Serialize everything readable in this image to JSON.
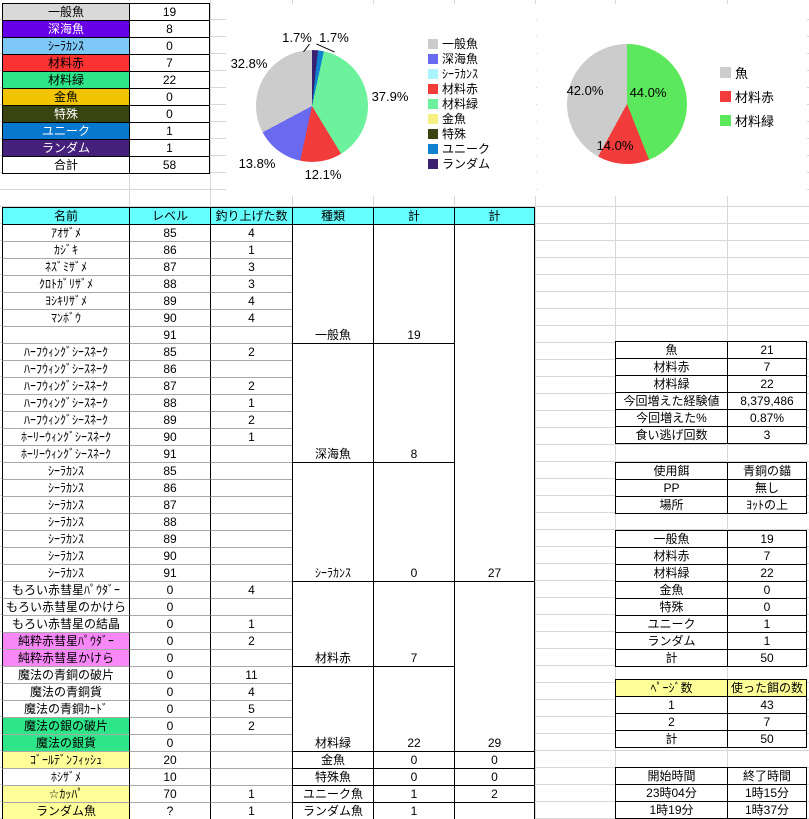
{
  "summary_table": {
    "rows": [
      {
        "a": "一般魚",
        "b": "19",
        "abg": "#d9d9d9",
        "afg": "#000000"
      },
      {
        "a": "深海魚",
        "b": "8",
        "abg": "#6600e6",
        "afg": "#ffffff"
      },
      {
        "a": "ｼｰﾗｶﾝｽ",
        "b": "0",
        "abg": "#7ec8f8",
        "afg": "#000000"
      },
      {
        "a": "材料赤",
        "b": "7",
        "abg": "#fa3232",
        "afg": "#000000"
      },
      {
        "a": "材料緑",
        "b": "22",
        "abg": "#2ee589",
        "afg": "#000000"
      },
      {
        "a": "金魚",
        "b": "0",
        "abg": "#f0c400",
        "afg": "#000000"
      },
      {
        "a": "特殊",
        "b": "0",
        "abg": "#3a4410",
        "afg": "#ffffff"
      },
      {
        "a": "ユニーク",
        "b": "1",
        "abg": "#0877ce",
        "afg": "#ffffff"
      },
      {
        "a": "ランダム",
        "b": "1",
        "abg": "#45217c",
        "afg": "#ffffff"
      },
      {
        "a": "合計",
        "b": "58"
      }
    ]
  },
  "chart_data": [
    {
      "type": "pie",
      "direction": "clockwise_from_top",
      "legend_position": "right",
      "slices": [
        {
          "label": "ランダム",
          "value": 1,
          "pct": 1.7,
          "pct_label": "1.7%",
          "color": "#3a2070"
        },
        {
          "label": "ユニーク",
          "value": 1,
          "pct": 1.7,
          "pct_label": "1.7%",
          "color": "#1080d0"
        },
        {
          "label": "材料緑",
          "value": 22,
          "pct": 37.9,
          "pct_label": "37.9%",
          "color": "#6cf29c"
        },
        {
          "label": "材料赤",
          "value": 7,
          "pct": 12.1,
          "pct_label": "12.1%",
          "color": "#f23b3b"
        },
        {
          "label": "深海魚",
          "value": 8,
          "pct": 13.8,
          "pct_label": "13.8%",
          "color": "#6a6af0"
        },
        {
          "label": "一般魚",
          "value": 19,
          "pct": 32.8,
          "pct_label": "32.8%",
          "color": "#cccccc"
        }
      ],
      "legend": [
        {
          "t": "一般魚",
          "c": "#cccccc"
        },
        {
          "t": "深海魚",
          "c": "#6a6af0"
        },
        {
          "t": "ｼｰﾗｶﾝｽ",
          "c": "#aaf5ff"
        },
        {
          "t": "材料赤",
          "c": "#f23b3b"
        },
        {
          "t": "材料緑",
          "c": "#6cf29c"
        },
        {
          "t": "金魚",
          "c": "#f5f080"
        },
        {
          "t": "特殊",
          "c": "#3a4410"
        },
        {
          "t": "ユニーク",
          "c": "#1080d0"
        },
        {
          "t": "ランダム",
          "c": "#3a2070"
        }
      ]
    },
    {
      "type": "pie",
      "direction": "clockwise_from_top",
      "legend_position": "right",
      "slices": [
        {
          "label": "材料緑",
          "value": 22,
          "pct": 44.0,
          "pct_label": "44.0%",
          "color": "#5ce85c"
        },
        {
          "label": "材料赤",
          "value": 7,
          "pct": 14.0,
          "pct_label": "14.0%",
          "color": "#f23b3b"
        },
        {
          "label": "魚",
          "value": 21,
          "pct": 42.0,
          "pct_label": "42.0%",
          "color": "#cccccc"
        }
      ],
      "legend": [
        {
          "t": "魚",
          "c": "#cccccc"
        },
        {
          "t": "材料赤",
          "c": "#f23b3b"
        },
        {
          "t": "材料緑",
          "c": "#5ce85c"
        }
      ]
    }
  ],
  "main_table": {
    "headers": [
      "名前",
      "レベル",
      "釣り上げた数",
      "種類",
      "計",
      "計"
    ],
    "rows": [
      {
        "n": "ｱｵｻﾞﾒ",
        "l": "85",
        "c": "4"
      },
      {
        "n": "ｶｼﾞｷ",
        "l": "86",
        "c": "1"
      },
      {
        "n": "ﾈｽﾞﾐｻﾞﾒ",
        "l": "87",
        "c": "3"
      },
      {
        "n": "ｸﾛﾄｶﾞﾘｻﾞﾒ",
        "l": "88",
        "c": "3"
      },
      {
        "n": "ﾖｼｷﾘｻﾞﾒ",
        "l": "89",
        "c": "4"
      },
      {
        "n": "ﾏﾝﾎﾞｳ",
        "l": "90",
        "c": "4"
      },
      {
        "n": "",
        "l": "91",
        "c": "",
        "k": "一般魚",
        "t": "19",
        "de": true
      },
      {
        "n": "ﾊｰﾌｳｨﾝｸﾞｼｰｽﾈｰｸ",
        "l": "85",
        "c": "2"
      },
      {
        "n": "ﾊｰﾌｳｨﾝｸﾞｼｰｽﾈｰｸ",
        "l": "86",
        "c": ""
      },
      {
        "n": "ﾊｰﾌｳｨﾝｸﾞｼｰｽﾈｰｸ",
        "l": "87",
        "c": "2"
      },
      {
        "n": "ﾊｰﾌｳｨﾝｸﾞｼｰｽﾈｰｸ",
        "l": "88",
        "c": "1"
      },
      {
        "n": "ﾊｰﾌｳｨﾝｸﾞｼｰｽﾈｰｸ",
        "l": "89",
        "c": "2"
      },
      {
        "n": "ﾎｰﾘｰｳｨﾝｸﾞｼｰｽﾈｰｸ",
        "l": "90",
        "c": "1"
      },
      {
        "n": "ﾎｰﾘｰｳｨﾝｸﾞｼｰｽﾈｰｸ",
        "l": "91",
        "c": "",
        "k": "深海魚",
        "t": "8",
        "de": true
      },
      {
        "n": "ｼｰﾗｶﾝｽ",
        "l": "85"
      },
      {
        "n": "ｼｰﾗｶﾝｽ",
        "l": "86"
      },
      {
        "n": "ｼｰﾗｶﾝｽ",
        "l": "87"
      },
      {
        "n": "ｼｰﾗｶﾝｽ",
        "l": "88"
      },
      {
        "n": "ｼｰﾗｶﾝｽ",
        "l": "89"
      },
      {
        "n": "ｼｰﾗｶﾝｽ",
        "l": "90"
      },
      {
        "n": "ｼｰﾗｶﾝｽ",
        "l": "91",
        "k": "ｼｰﾗｶﾝｽ",
        "t": "0",
        "t2": "27",
        "de": true,
        "fe": true
      },
      {
        "n": "もろい赤彗星ﾊﾟｳﾀﾞｰ",
        "l": "0",
        "c": "4"
      },
      {
        "n": "もろい赤彗星のかけら",
        "l": "0"
      },
      {
        "n": "もろい赤彗星の結晶",
        "l": "0",
        "c": "1"
      },
      {
        "n": "純粋赤彗星ﾊﾟｳﾀﾞｰ",
        "l": "0",
        "c": "2",
        "nbg": "#f887f8"
      },
      {
        "n": "純粋赤彗星かけら",
        "l": "0",
        "k": "材料赤",
        "t": "7",
        "nbg": "#f887f8",
        "de": true
      },
      {
        "n": "魔法の青銅の破片",
        "l": "0",
        "c": "11"
      },
      {
        "n": "魔法の青銅貨",
        "l": "0",
        "c": "4"
      },
      {
        "n": "魔法の青銅ｶｰﾄﾞ",
        "l": "0",
        "c": "5"
      },
      {
        "n": "魔法の銀の破片",
        "l": "0",
        "c": "2",
        "nbg": "#2ee589"
      },
      {
        "n": "魔法の銀貨",
        "l": "0",
        "k": "材料緑",
        "t": "22",
        "t2": "29",
        "nbg": "#2ee589",
        "de": true,
        "fe": true
      },
      {
        "n": "ｺﾞｰﾙﾃﾞﾝﾌｨｯｼｭ",
        "l": "20",
        "k": "金魚",
        "t": "0",
        "t2": "0",
        "nbg": "#ffff99",
        "de": true,
        "fe": true
      },
      {
        "n": "ﾎｼｻﾞﾒ",
        "l": "10",
        "k": "特殊魚",
        "t": "0",
        "t2": "0",
        "de": true,
        "fe": true
      },
      {
        "n": "☆ｶｯﾊﾟ",
        "l": "70",
        "c": "1",
        "k": "ユニーク魚",
        "t": "1",
        "t2": "2",
        "nbg": "#ffff99",
        "de": true,
        "fe": true
      },
      {
        "n": "ランダム魚",
        "l": "?",
        "c": "1",
        "k": "ランダム魚",
        "t": "1",
        "nbg": "#ffff99",
        "de": true,
        "fe": true
      }
    ]
  },
  "right_tables": {
    "stats1": {
      "rows": [
        {
          "a": "魚",
          "b": "21"
        },
        {
          "a": "材料赤",
          "b": "7"
        },
        {
          "a": "材料緑",
          "b": "22"
        },
        {
          "a": "今回増えた経験値",
          "b": "8,379,486"
        },
        {
          "a": "今回増えた%",
          "b": "0.87%"
        },
        {
          "a": "食い逃げ回数",
          "b": "3"
        }
      ]
    },
    "info": {
      "rows": [
        {
          "a": "使用餌",
          "b": "青銅の錨"
        },
        {
          "a": "PP",
          "b": "無し"
        },
        {
          "a": "場所",
          "b": "ﾖｯﾄの上"
        }
      ]
    },
    "stats2": {
      "rows": [
        {
          "a": "一般魚",
          "b": "19"
        },
        {
          "a": "材料赤",
          "b": "7"
        },
        {
          "a": "材料緑",
          "b": "22"
        },
        {
          "a": "金魚",
          "b": "0"
        },
        {
          "a": "特殊",
          "b": "0"
        },
        {
          "a": "ユニーク",
          "b": "1"
        },
        {
          "a": "ランダム",
          "b": "1"
        },
        {
          "a": "計",
          "b": "50"
        }
      ]
    },
    "pages": {
      "rows": [
        {
          "a": "ﾍﾟｰｼﾞ数",
          "b": "使った餌の数",
          "bg": "#ffff99"
        },
        {
          "a": "1",
          "b": "43"
        },
        {
          "a": "2",
          "b": "7"
        },
        {
          "a": "計",
          "b": "50"
        }
      ]
    },
    "times": {
      "rows": [
        {
          "a": "開始時間",
          "b": "終了時間"
        },
        {
          "a": "23時04分",
          "b": "1時15分"
        },
        {
          "a": "1時19分",
          "b": "1時37分"
        }
      ]
    }
  }
}
